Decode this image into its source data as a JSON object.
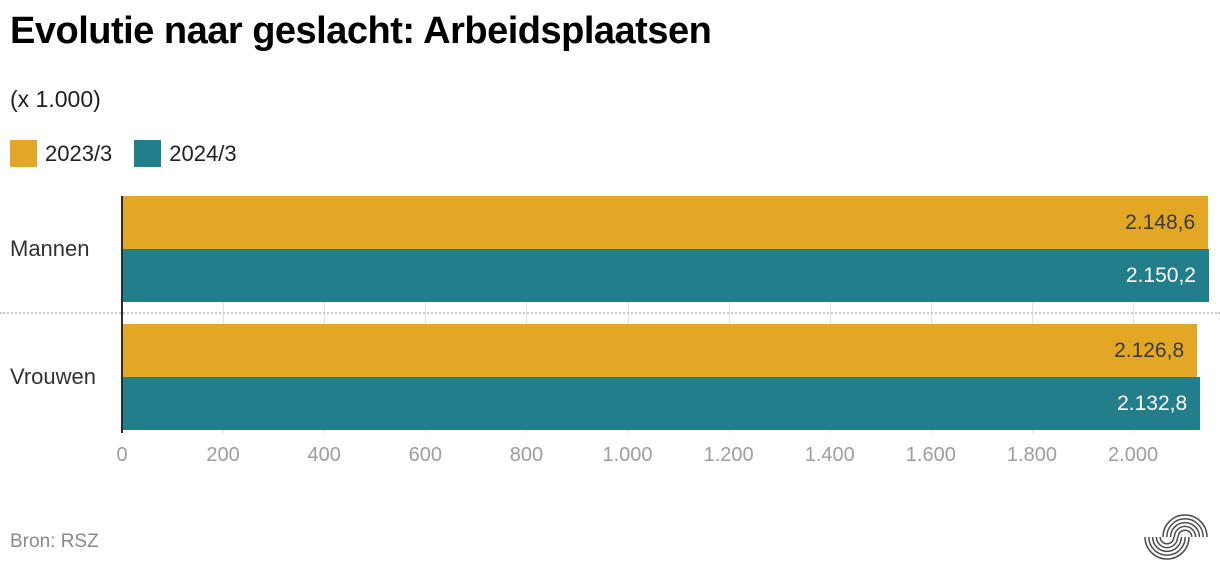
{
  "header": {
    "title": "Evolutie naar geslacht: Arbeidsplaatsen",
    "subtitle": "(x 1.000)"
  },
  "footer": {
    "source": "Bron: RSZ",
    "logo_icon": "statbel-arcs-logo"
  },
  "colors": {
    "series_2023": "#e2a725",
    "series_2024": "#237e8c",
    "axis_line": "#2d2d2d",
    "grid_line": "#e2e2e2",
    "tick_label": "#9e9e9e",
    "background": "#ffffff"
  },
  "chart_data": {
    "type": "bar",
    "orientation": "horizontal",
    "title": "Evolutie naar geslacht: Arbeidsplaatsen",
    "unit_note": "(x 1.000)",
    "categories": [
      "Mannen",
      "Vrouwen"
    ],
    "series": [
      {
        "name": "2023/3",
        "color": "#e2a725",
        "label_color": "#3b3b3b",
        "values": [
          2148.6,
          2126.8
        ],
        "value_labels": [
          "2.148,6",
          "2.126,8"
        ]
      },
      {
        "name": "2024/3",
        "color": "#237e8c",
        "label_color": "#ffffff",
        "values": [
          2150.2,
          2132.8
        ],
        "value_labels": [
          "2.150,2",
          "2.132,8"
        ]
      }
    ],
    "x_axis": {
      "min": 0,
      "max": 2172,
      "ticks": [
        0,
        200,
        400,
        600,
        800,
        1000,
        1200,
        1400,
        1600,
        1800,
        2000
      ],
      "tick_labels": [
        "0",
        "200",
        "400",
        "600",
        "800",
        "1.000",
        "1.200",
        "1.400",
        "1.600",
        "1.800",
        "2.000"
      ]
    },
    "legend_position": "top-left",
    "grid": true,
    "value_labels_inside_bar_end": true
  }
}
